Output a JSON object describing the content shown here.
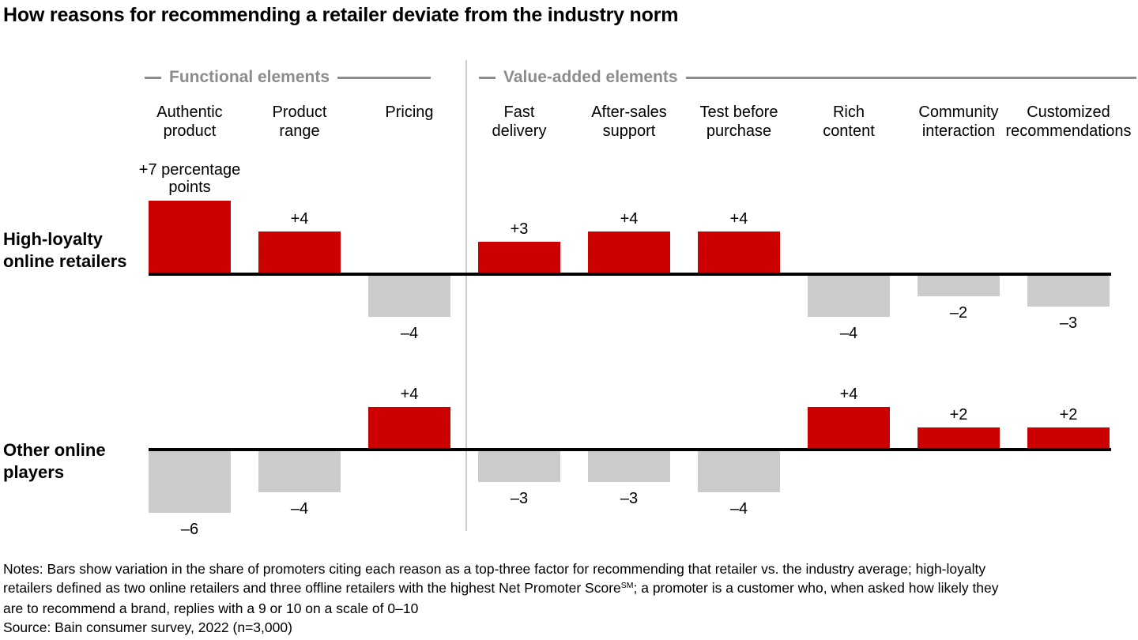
{
  "title": "How reasons for recommending a retailer deviate from the industry norm",
  "chart_data": {
    "type": "bar",
    "title": "How reasons for recommending a retailer deviate from the industry norm",
    "unit": "percentage points vs. industry average",
    "legend_position": "none",
    "grid": false,
    "group_headers": [
      {
        "label": "Functional elements",
        "category_span": [
          0,
          2
        ]
      },
      {
        "label": "Value-added elements",
        "category_span": [
          3,
          8
        ]
      }
    ],
    "categories": [
      "Authentic product",
      "Product range",
      "Pricing",
      "Fast delivery",
      "After-sales support",
      "Test before purchase",
      "Rich content",
      "Community interaction",
      "Customized recommendations"
    ],
    "category_label_lines": [
      [
        "Authentic",
        "product"
      ],
      [
        "Product",
        "range"
      ],
      [
        "Pricing"
      ],
      [
        "Fast",
        "delivery"
      ],
      [
        "After-sales",
        "support"
      ],
      [
        "Test before",
        "purchase"
      ],
      [
        "Rich",
        "content"
      ],
      [
        "Community",
        "interaction"
      ],
      [
        "Customized",
        "recommendations"
      ]
    ],
    "series": [
      {
        "name": "High-loyalty online retailers",
        "name_lines": [
          "High-loyalty",
          "online retailers"
        ],
        "values": [
          7,
          4,
          -4,
          3,
          4,
          4,
          -4,
          -2,
          -3
        ],
        "value_labels": [
          "+7 percentage points",
          "+4",
          "–4",
          "+3",
          "+4",
          "+4",
          "–4",
          "–2",
          "–3"
        ]
      },
      {
        "name": "Other online players",
        "name_lines": [
          "Other online",
          "players"
        ],
        "values": [
          -6,
          -4,
          4,
          -3,
          -3,
          -4,
          4,
          2,
          2
        ],
        "value_labels": [
          "–6",
          "–4",
          "+4",
          "–3",
          "–3",
          "–4",
          "+4",
          "+2",
          "+2"
        ]
      }
    ],
    "colors": {
      "positive": "#CC0000",
      "negative": "#CBCBCB",
      "baseline": "#000000",
      "group_header": "#8C8C8C",
      "divider": "#CCCCCC"
    }
  },
  "footer": {
    "notes_line1": "Notes: Bars show variation in the share of promoters citing each reason as a top-three factor for recommending that retailer vs. the industry average; high-loyalty",
    "notes_line2_pre": "retailers defined as two online retailers and three offline retailers with the highest Net Promoter Score",
    "notes_line2_sup": "SM",
    "notes_line2_post": "; a promoter is a customer who, when asked how likely they",
    "notes_line3": "are to recommend a brand, replies with a 9 or 10 on a scale of 0–10",
    "source": "Source: Bain consumer survey, 2022 (n=3,000)"
  }
}
